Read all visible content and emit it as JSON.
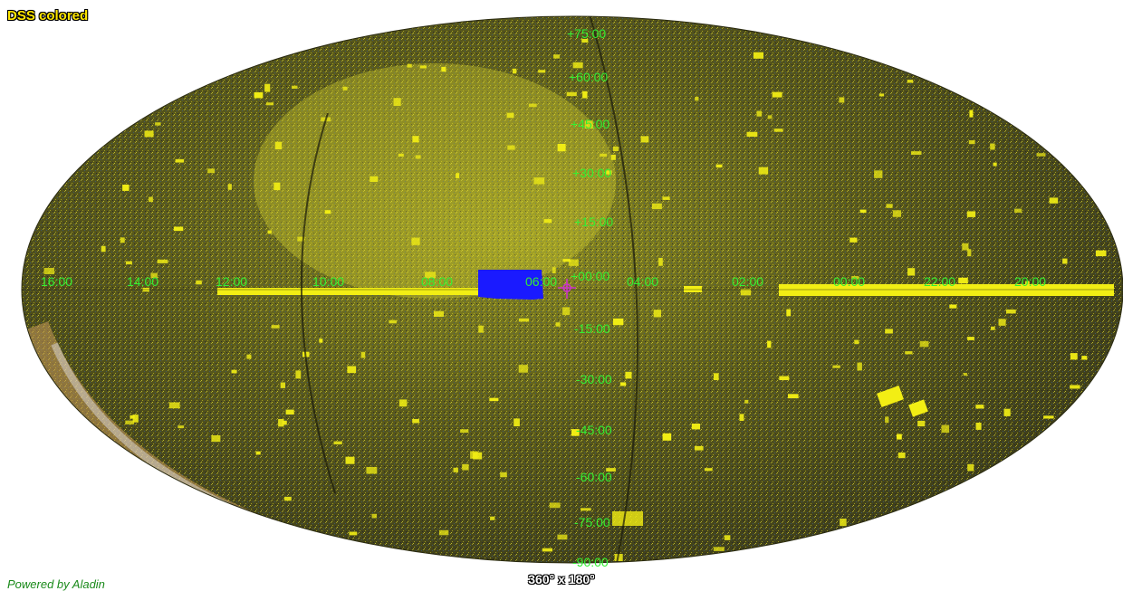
{
  "survey": {
    "label": "DSS colored"
  },
  "field_of_view": {
    "label": "360° x 180°"
  },
  "credit": {
    "label": "Powered by Aladin"
  },
  "projection": "Aitoff / Mollweide all-sky",
  "colors": {
    "sky_base": "#4a4a14",
    "coverage": "#f2ee14",
    "selection": "#1a1aff",
    "grid_label": "#33ee33",
    "grid_line": "#1a1a0a",
    "reticle": "#cc33cc"
  },
  "grid": {
    "dec_labels": [
      "+75:00",
      "+60:00",
      "+45:00",
      "+30:00",
      "+15:00",
      "+00:00",
      "-15:00",
      "-30:00",
      "-45:00",
      "-60:00",
      "-75:00",
      "-90:00"
    ],
    "ra_labels": [
      "16:00",
      "14:00",
      "12:00",
      "10:00",
      "08:00",
      "06:00",
      "04:00",
      "02:00",
      "00:00",
      "22:00",
      "20:00"
    ]
  }
}
